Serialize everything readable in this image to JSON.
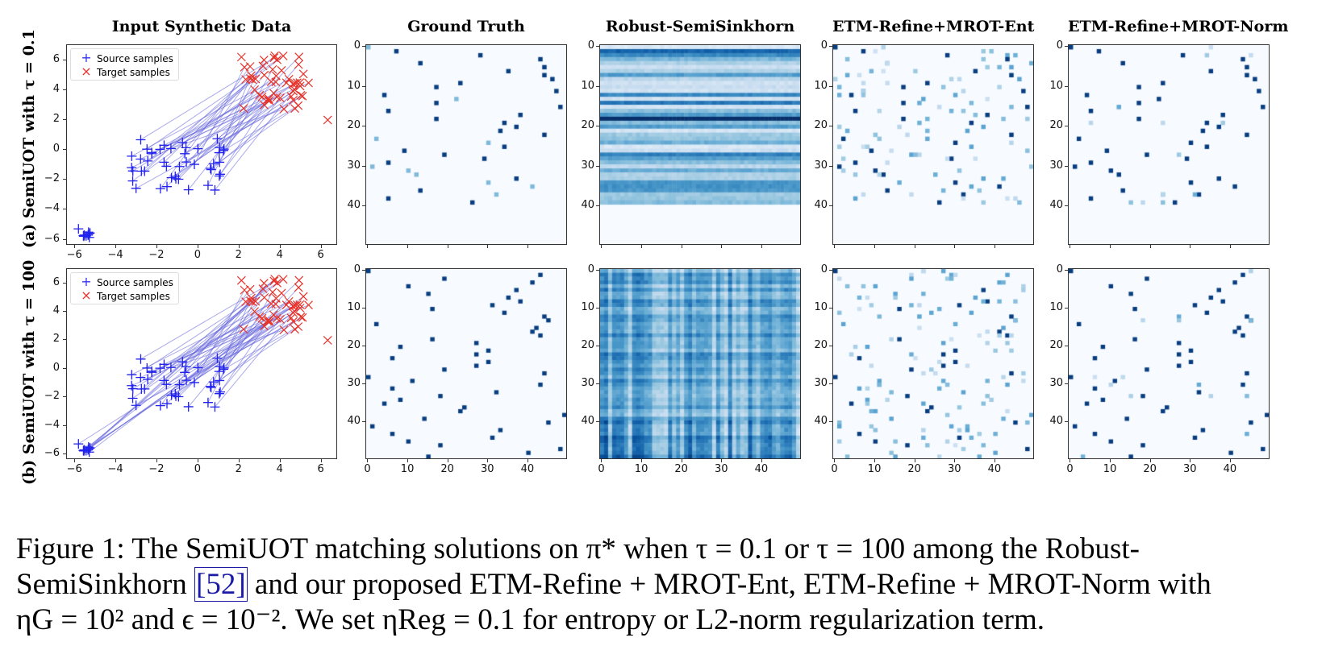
{
  "column_titles": [
    "Input Synthetic Data",
    "Ground Truth",
    "Robust-SemiSinkhorn",
    "ETM-Refine+MROT-Ent",
    "ETM-Refine+MROT-Norm"
  ],
  "row_labels": [
    "(a) SemiUOT with τ = 0.1",
    "(b) SemiUOT with τ = 100"
  ],
  "legend": {
    "source": "Source samples",
    "target": "Target samples",
    "source_color": "#3333ee",
    "target_color": "#e8332a"
  },
  "scatter_axes": {
    "xticks": [
      "−6",
      "−4",
      "−2",
      "0",
      "2",
      "4",
      "6"
    ],
    "yticks": [
      "6",
      "4",
      "2",
      "0",
      "−2",
      "−4",
      "−6"
    ]
  },
  "heatmap_axes": {
    "yticks": [
      "0",
      "10",
      "20",
      "30",
      "40"
    ],
    "xticks": [
      "0",
      "10",
      "20",
      "30",
      "40"
    ]
  },
  "caption": {
    "line1": "Figure 1: The SemiUOT matching solutions on π* when τ = 0.1 or τ = 100 among the Robust-",
    "line2a": "SemiSinkhorn ",
    "cite": "[52]",
    "line2b": " and our proposed ETM-Refine + MROT-Ent, ETM-Refine + MROT-Norm with",
    "line3": "ηG = 10² and ϵ = 10⁻². We set ηReg = 0.1 for entropy or L2-norm regularization term."
  },
  "chart_data": [
    {
      "type": "scatter",
      "title": "Input Synthetic Data",
      "row": "(a) SemiUOT with τ = 0.1",
      "xlim": [
        -6.5,
        6.8
      ],
      "ylim": [
        -6.5,
        6.8
      ],
      "series": [
        {
          "name": "Source samples",
          "marker": "+",
          "cluster_main_center": [
            -1,
            -1
          ],
          "cluster_outlier_center": [
            -5.6,
            -5.6
          ]
        },
        {
          "name": "Target samples",
          "marker": "x",
          "center": [
            3.8,
            4.5
          ]
        }
      ],
      "note": "Matching lines connect main source cluster to targets; outlier cluster (~(-5.6,-5.6)) unmatched"
    },
    {
      "type": "heatmap",
      "title": "Ground Truth",
      "row": "(a)",
      "shape": [
        40,
        50
      ],
      "cmap": "Blues",
      "pattern": "sparse"
    },
    {
      "type": "heatmap",
      "title": "Robust-SemiSinkhorn",
      "row": "(a)",
      "shape": [
        40,
        50
      ],
      "cmap": "Blues",
      "pattern": "row-banded dense"
    },
    {
      "type": "heatmap",
      "title": "ETM-Refine+MROT-Ent",
      "row": "(a)",
      "shape": [
        40,
        50
      ],
      "cmap": "Blues",
      "pattern": "sparse with faint spread"
    },
    {
      "type": "heatmap",
      "title": "ETM-Refine+MROT-Norm",
      "row": "(a)",
      "shape": [
        40,
        50
      ],
      "cmap": "Blues",
      "pattern": "sparse"
    },
    {
      "type": "scatter",
      "title": "Input Synthetic Data",
      "row": "(b) SemiUOT with τ = 100",
      "xlim": [
        -6.5,
        6.8
      ],
      "ylim": [
        -6.5,
        6.8
      ],
      "note": "All source samples including outlier cluster matched to targets"
    },
    {
      "type": "heatmap",
      "title": "Ground Truth",
      "row": "(b)",
      "shape": [
        50,
        50
      ],
      "cmap": "Blues",
      "pattern": "sparse permutation"
    },
    {
      "type": "heatmap",
      "title": "Robust-SemiSinkhorn",
      "row": "(b)",
      "shape": [
        50,
        50
      ],
      "cmap": "Blues",
      "pattern": "dense grid"
    },
    {
      "type": "heatmap",
      "title": "ETM-Refine+MROT-Ent",
      "row": "(b)",
      "shape": [
        50,
        50
      ],
      "cmap": "Blues",
      "pattern": "sparse with faint spread"
    },
    {
      "type": "heatmap",
      "title": "ETM-Refine+MROT-Norm",
      "row": "(b)",
      "shape": [
        50,
        50
      ],
      "cmap": "Blues",
      "pattern": "sparse"
    }
  ]
}
